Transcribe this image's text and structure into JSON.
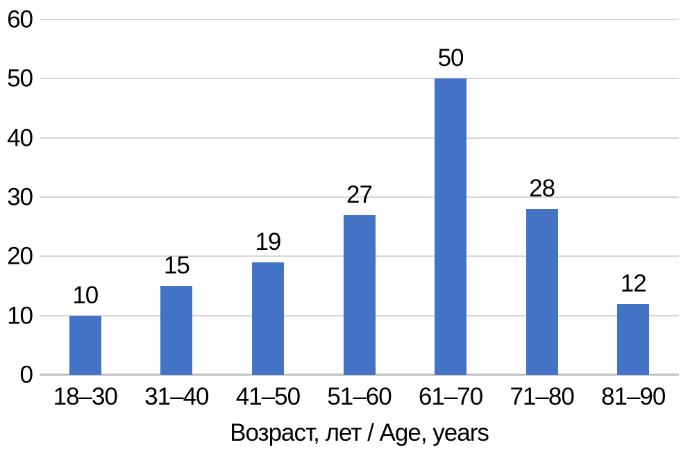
{
  "chart_data": {
    "type": "bar",
    "title": "",
    "categories": [
      "18–30",
      "31–40",
      "41–50",
      "51–60",
      "61–70",
      "71–80",
      "81–90"
    ],
    "values": [
      10,
      15,
      19,
      27,
      50,
      28,
      12
    ],
    "data_labels": [
      "10",
      "15",
      "19",
      "27",
      "50",
      "28",
      "12"
    ],
    "xlabel": "Возраст, лет / Age, years",
    "ylabel": "",
    "ylim": [
      0,
      60
    ],
    "yticks": [
      0,
      10,
      20,
      30,
      40,
      50,
      60
    ],
    "grid": true,
    "legend": false,
    "colors": {
      "bar": "#4472C4",
      "gridline": "#D6D6D6",
      "axis_line": "#BFBFBF",
      "text": "#000000",
      "background": "#FFFFFF"
    }
  }
}
